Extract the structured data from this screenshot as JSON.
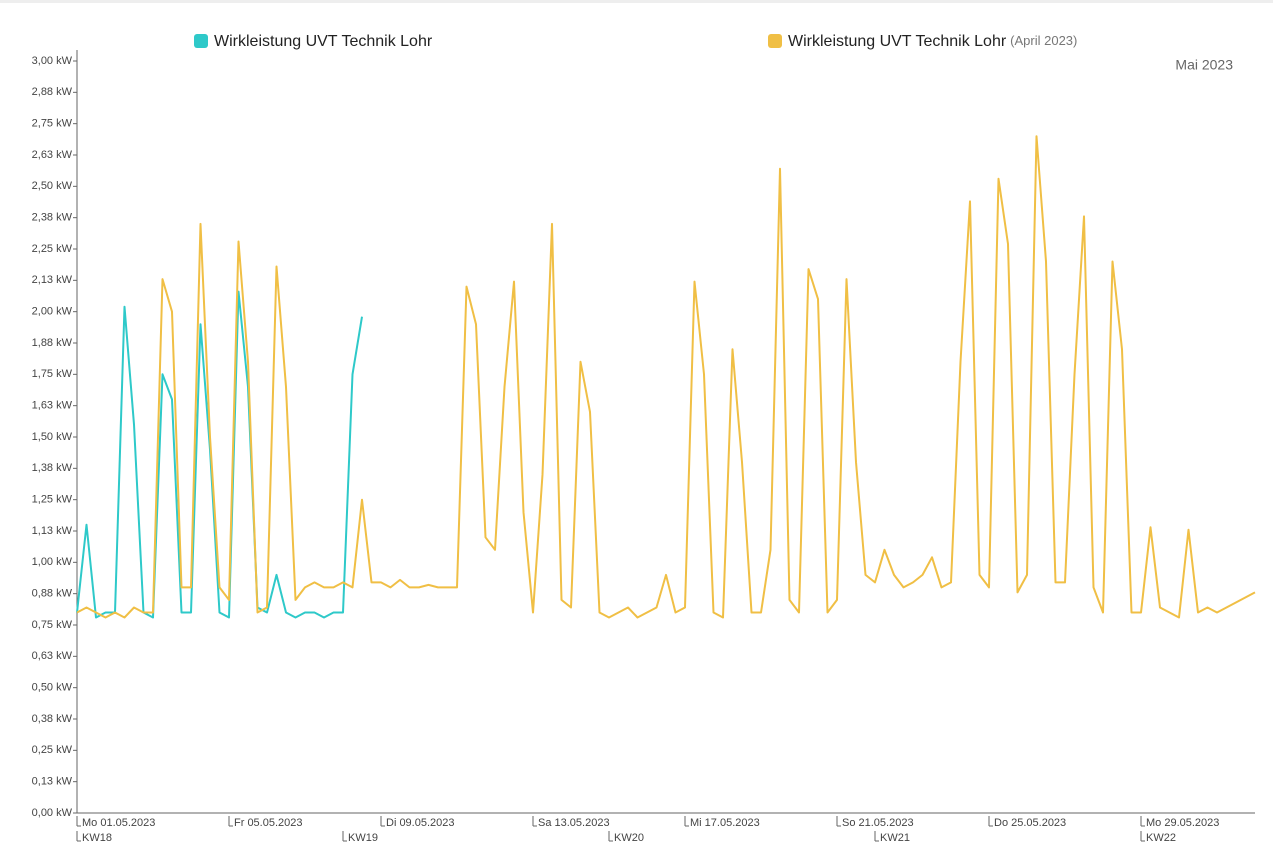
{
  "chart_data": {
    "type": "line",
    "period_label": "Mai 2023",
    "xlim": [
      1,
      32
    ],
    "ylim": [
      0,
      3
    ],
    "xticks": [
      {
        "value": 1,
        "label": "Mo 01.05.2023"
      },
      {
        "value": 5,
        "label": "Fr 05.05.2023"
      },
      {
        "value": 9,
        "label": "Di 09.05.2023"
      },
      {
        "value": 13,
        "label": "Sa 13.05.2023"
      },
      {
        "value": 17,
        "label": "Mi 17.05.2023"
      },
      {
        "value": 21,
        "label": "So 21.05.2023"
      },
      {
        "value": 25,
        "label": "Do 25.05.2023"
      },
      {
        "value": 29,
        "label": "Mo 29.05.2023"
      }
    ],
    "xticks_secondary": [
      {
        "value": 1,
        "label": "KW18"
      },
      {
        "value": 8,
        "label": "KW19"
      },
      {
        "value": 15,
        "label": "KW20"
      },
      {
        "value": 22,
        "label": "KW21"
      },
      {
        "value": 29,
        "label": "KW22"
      }
    ],
    "yticks": [
      {
        "value": 0,
        "label": "0,00 kW"
      },
      {
        "value": 0.125,
        "label": "0,13 kW"
      },
      {
        "value": 0.25,
        "label": "0,25 kW"
      },
      {
        "value": 0.375,
        "label": "0,38 kW"
      },
      {
        "value": 0.5,
        "label": "0,50 kW"
      },
      {
        "value": 0.625,
        "label": "0,63 kW"
      },
      {
        "value": 0.75,
        "label": "0,75 kW"
      },
      {
        "value": 0.875,
        "label": "0,88 kW"
      },
      {
        "value": 1,
        "label": "1,00 kW"
      },
      {
        "value": 1.125,
        "label": "1,13 kW"
      },
      {
        "value": 1.25,
        "label": "1,25 kW"
      },
      {
        "value": 1.375,
        "label": "1,38 kW"
      },
      {
        "value": 1.5,
        "label": "1,50 kW"
      },
      {
        "value": 1.625,
        "label": "1,63 kW"
      },
      {
        "value": 1.75,
        "label": "1,75 kW"
      },
      {
        "value": 1.875,
        "label": "1,88 kW"
      },
      {
        "value": 2,
        "label": "2,00 kW"
      },
      {
        "value": 2.125,
        "label": "2,13 kW"
      },
      {
        "value": 2.25,
        "label": "2,25 kW"
      },
      {
        "value": 2.375,
        "label": "2,38 kW"
      },
      {
        "value": 2.5,
        "label": "2,50 kW"
      },
      {
        "value": 2.625,
        "label": "2,63 kW"
      },
      {
        "value": 2.75,
        "label": "2,75 kW"
      },
      {
        "value": 2.875,
        "label": "2,88 kW"
      },
      {
        "value": 3,
        "label": "3,00 kW"
      }
    ],
    "series": [
      {
        "name": "Wirkleistung UVT Technik Lohr",
        "color": "#2ec9c9",
        "x": [
          1,
          1.25,
          1.5,
          1.75,
          2,
          2.25,
          2.5,
          2.75,
          3,
          3.25,
          3.5,
          3.75,
          4,
          4.25,
          4.5,
          4.75,
          5,
          5.25,
          5.5,
          5.75,
          6,
          6.25,
          6.5,
          6.75,
          7,
          7.25,
          7.5,
          7.75,
          8,
          8.25,
          8.5
        ],
        "values": [
          0.8,
          1.15,
          0.78,
          0.8,
          0.8,
          2.02,
          1.55,
          0.8,
          0.78,
          1.75,
          1.65,
          0.8,
          0.8,
          1.95,
          1.45,
          0.8,
          0.78,
          2.08,
          1.7,
          0.82,
          0.8,
          0.95,
          0.8,
          0.78,
          0.8,
          0.8,
          0.78,
          0.8,
          0.8,
          1.75,
          1.98
        ]
      },
      {
        "name": "Wirkleistung UVT Technik Lohr",
        "period": "(April 2023)",
        "color": "#f0bf45",
        "x": [
          1,
          1.25,
          1.5,
          1.75,
          2,
          2.25,
          2.5,
          2.75,
          3,
          3.25,
          3.5,
          3.75,
          4,
          4.25,
          4.5,
          4.75,
          5,
          5.25,
          5.5,
          5.75,
          6,
          6.25,
          6.5,
          6.75,
          7,
          7.25,
          7.5,
          7.75,
          8,
          8.25,
          8.5,
          8.75,
          9,
          9.25,
          9.5,
          9.75,
          10,
          10.25,
          10.5,
          10.75,
          11,
          11.25,
          11.5,
          11.75,
          12,
          12.25,
          12.5,
          12.75,
          13,
          13.25,
          13.5,
          13.75,
          14,
          14.25,
          14.5,
          14.75,
          15,
          15.25,
          15.5,
          15.75,
          16,
          16.25,
          16.5,
          16.75,
          17,
          17.25,
          17.5,
          17.75,
          18,
          18.25,
          18.5,
          18.75,
          19,
          19.25,
          19.5,
          19.75,
          20,
          20.25,
          20.5,
          20.75,
          21,
          21.25,
          21.5,
          21.75,
          22,
          22.25,
          22.5,
          22.75,
          23,
          23.25,
          23.5,
          23.75,
          24,
          24.25,
          24.5,
          24.75,
          25,
          25.25,
          25.5,
          25.75,
          26,
          26.25,
          26.5,
          26.75,
          27,
          27.25,
          27.5,
          27.75,
          28,
          28.25,
          28.5,
          28.75,
          29,
          29.25,
          29.5,
          29.75,
          30,
          30.25,
          30.5,
          30.75,
          31,
          32
        ],
        "values": [
          0.8,
          0.82,
          0.8,
          0.78,
          0.8,
          0.78,
          0.82,
          0.8,
          0.8,
          2.13,
          2.0,
          0.9,
          0.9,
          2.35,
          1.5,
          0.9,
          0.85,
          2.28,
          1.8,
          0.8,
          0.82,
          2.18,
          1.7,
          0.85,
          0.9,
          0.92,
          0.9,
          0.9,
          0.92,
          0.9,
          1.25,
          0.92,
          0.92,
          0.9,
          0.93,
          0.9,
          0.9,
          0.91,
          0.9,
          0.9,
          0.9,
          2.1,
          1.95,
          1.1,
          1.05,
          1.7,
          2.12,
          1.2,
          0.8,
          1.35,
          2.35,
          0.85,
          0.82,
          1.8,
          1.6,
          0.8,
          0.78,
          0.8,
          0.82,
          0.78,
          0.8,
          0.82,
          0.95,
          0.8,
          0.82,
          2.12,
          1.75,
          0.8,
          0.78,
          1.85,
          1.4,
          0.8,
          0.8,
          1.05,
          2.57,
          0.85,
          0.8,
          2.17,
          2.05,
          0.8,
          0.85,
          2.13,
          1.4,
          0.95,
          0.92,
          1.05,
          0.95,
          0.9,
          0.92,
          0.95,
          1.02,
          0.9,
          0.92,
          1.8,
          2.44,
          0.95,
          0.9,
          2.53,
          2.27,
          0.88,
          0.95,
          2.7,
          2.2,
          0.92,
          0.92,
          1.75,
          2.38,
          0.9,
          0.8,
          2.2,
          1.85,
          0.8,
          0.8,
          1.14,
          0.82,
          0.8,
          0.78,
          1.13,
          0.8,
          0.82,
          0.8,
          0.88
        ]
      }
    ]
  }
}
